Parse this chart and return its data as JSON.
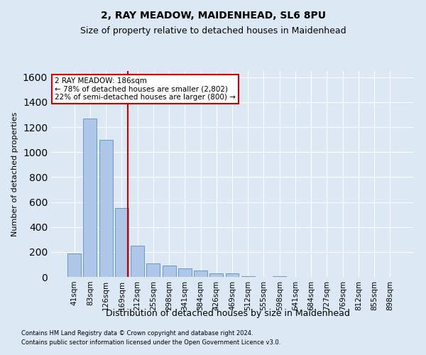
{
  "title": "2, RAY MEADOW, MAIDENHEAD, SL6 8PU",
  "subtitle": "Size of property relative to detached houses in Maidenhead",
  "xlabel": "Distribution of detached houses by size in Maidenhead",
  "ylabel": "Number of detached properties",
  "categories": [
    "41sqm",
    "83sqm",
    "126sqm",
    "169sqm",
    "212sqm",
    "255sqm",
    "298sqm",
    "341sqm",
    "384sqm",
    "426sqm",
    "469sqm",
    "512sqm",
    "555sqm",
    "598sqm",
    "641sqm",
    "684sqm",
    "727sqm",
    "769sqm",
    "812sqm",
    "855sqm",
    "898sqm"
  ],
  "values": [
    190,
    1270,
    1100,
    550,
    250,
    110,
    90,
    70,
    50,
    30,
    30,
    5,
    0,
    5,
    0,
    0,
    0,
    0,
    0,
    0,
    0
  ],
  "bar_color": "#aec6e8",
  "bar_edge_color": "#5a8fc0",
  "annotation_text": "2 RAY MEADOW: 186sqm\n← 78% of detached houses are smaller (2,802)\n22% of semi-detached houses are larger (800) →",
  "annotation_box_color": "#ffffff",
  "annotation_box_edge": "#cc0000",
  "red_line_color": "#cc0000",
  "ylim": [
    0,
    1650
  ],
  "yticks": [
    0,
    200,
    400,
    600,
    800,
    1000,
    1200,
    1400,
    1600
  ],
  "footnote1": "Contains HM Land Registry data © Crown copyright and database right 2024.",
  "footnote2": "Contains public sector information licensed under the Open Government Licence v3.0.",
  "bg_color": "#dce9f5",
  "plot_bg_color": "#dce9f5",
  "title_fontsize": 10,
  "subtitle_fontsize": 9,
  "tick_fontsize": 7.5,
  "ylabel_fontsize": 8,
  "xlabel_fontsize": 9,
  "annot_fontsize": 7.5,
  "footnote_fontsize": 6
}
